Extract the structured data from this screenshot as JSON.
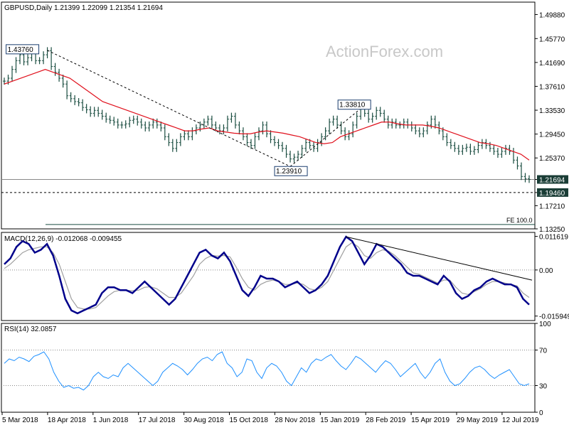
{
  "header": {
    "symbol": "GBPUSD,Daily",
    "ohlc": "1.21399 1.22099 1.21354 1.21694"
  },
  "watermark": "ActionForex.com",
  "colors": {
    "background": "#ffffff",
    "frame": "#000000",
    "price_bars": "#1a4d40",
    "moving_average": "#e0101c",
    "macd_line": "#00008b",
    "macd_signal": "#a0a0a0",
    "rsi_line": "#1e90ff",
    "current_price_tag": "#1a3d36",
    "support_tag": "#1a3d36",
    "guide_line": "#000000",
    "watermark": "#c8c8c8"
  },
  "chart_data": [
    {
      "type": "ohlc",
      "panel": "price",
      "ylim": [
        1.1325,
        1.52
      ],
      "yticks": [
        "1.49880",
        "1.45770",
        "1.41690",
        "1.37610",
        "1.33530",
        "1.29450",
        "1.25370",
        "1.21694",
        "1.19460",
        "1.17210",
        "1.13250"
      ],
      "ytick_values": [
        1.4988,
        1.4577,
        1.4169,
        1.3761,
        1.3353,
        1.2945,
        1.2537,
        1.21694,
        1.1946,
        1.1721,
        1.1325
      ],
      "xticks": [
        "5 Mar 2018",
        "18 Apr 2018",
        "1 Jun 2018",
        "17 Jul 2018",
        "30 Aug 2018",
        "15 Oct 2018",
        "28 Nov 2018",
        "15 Jan 2019",
        "28 Feb 2019",
        "15 Apr 2019",
        "29 May 2019",
        "12 Jul 2019"
      ],
      "close_series_approx": [
        1.385,
        1.39,
        1.405,
        1.42,
        1.43,
        1.418,
        1.425,
        1.435,
        1.42,
        1.42,
        1.43,
        1.437,
        1.41,
        1.4,
        1.39,
        1.38,
        1.36,
        1.355,
        1.35,
        1.348,
        1.34,
        1.336,
        1.33,
        1.335,
        1.33,
        1.325,
        1.32,
        1.318,
        1.315,
        1.31,
        1.31,
        1.312,
        1.318,
        1.32,
        1.315,
        1.31,
        1.305,
        1.31,
        1.315,
        1.31,
        1.305,
        1.29,
        1.28,
        1.27,
        1.28,
        1.29,
        1.295,
        1.29,
        1.3,
        1.305,
        1.31,
        1.315,
        1.32,
        1.31,
        1.305,
        1.3,
        1.305,
        1.32,
        1.325,
        1.31,
        1.3,
        1.29,
        1.28,
        1.275,
        1.29,
        1.3,
        1.31,
        1.295,
        1.285,
        1.28,
        1.275,
        1.27,
        1.26,
        1.252,
        1.255,
        1.26,
        1.27,
        1.28,
        1.275,
        1.27,
        1.28,
        1.29,
        1.3,
        1.315,
        1.32,
        1.31,
        1.3,
        1.29,
        1.295,
        1.31,
        1.325,
        1.338,
        1.33,
        1.32,
        1.325,
        1.335,
        1.33,
        1.32,
        1.31,
        1.315,
        1.31,
        1.31,
        1.315,
        1.31,
        1.305,
        1.3,
        1.295,
        1.3,
        1.31,
        1.32,
        1.31,
        1.3,
        1.29,
        1.28,
        1.275,
        1.27,
        1.265,
        1.27,
        1.272,
        1.265,
        1.268,
        1.275,
        1.28,
        1.275,
        1.27,
        1.265,
        1.26,
        1.265,
        1.27,
        1.265,
        1.25,
        1.24,
        1.222,
        1.218,
        1.217
      ],
      "ma_series_approx": [
        1.38,
        1.385,
        1.39,
        1.395,
        1.4,
        1.405,
        1.4,
        1.395,
        1.39,
        1.38,
        1.37,
        1.36,
        1.35,
        1.345,
        1.34,
        1.335,
        1.33,
        1.325,
        1.32,
        1.315,
        1.31,
        1.305,
        1.3,
        1.3,
        1.303,
        1.305,
        1.3,
        1.298,
        1.296,
        1.295,
        1.295,
        1.298,
        1.3,
        1.298,
        1.296,
        1.293,
        1.29,
        1.285,
        1.28,
        1.278,
        1.28,
        1.29,
        1.295,
        1.3,
        1.305,
        1.31,
        1.315,
        1.315,
        1.312,
        1.31,
        1.31,
        1.31,
        1.308,
        1.305,
        1.3,
        1.295,
        1.29,
        1.285,
        1.28,
        1.278,
        1.275,
        1.27,
        1.265,
        1.26,
        1.25
      ],
      "annotations": [
        {
          "label": "1.43760",
          "value": 1.4376
        },
        {
          "label": "1.33810",
          "value": 1.3381
        },
        {
          "label": "1.23910",
          "value": 1.2391
        },
        {
          "label": "FE 100.0",
          "value": 1.14
        }
      ],
      "current_price": 1.21694,
      "support_level": 1.1946,
      "trendlines": [
        {
          "from": [
            1.4376,
            "peak"
          ],
          "to": [
            1.2391,
            "trough"
          ],
          "style": "dashed"
        },
        {
          "from": [
            1.2391,
            "trough"
          ],
          "to": [
            1.3381,
            "peak"
          ],
          "style": "dashed"
        }
      ]
    },
    {
      "type": "line",
      "panel": "macd",
      "title": "MACD(12,26,9) -0.012068 -0.009455",
      "ylim": [
        -0.0175,
        0.013
      ],
      "yticks": [
        "0.011619",
        "0.00",
        "-0.015949"
      ],
      "ytick_values": [
        0.011619,
        0.0,
        -0.015949
      ],
      "series": [
        {
          "values": [
            0.002,
            0.004,
            0.008,
            0.01,
            0.009,
            0.006,
            0.007,
            0.009,
            0.005,
            -0.002,
            -0.01,
            -0.014,
            -0.015,
            -0.014,
            -0.013,
            -0.012,
            -0.008,
            -0.006,
            -0.006,
            -0.007,
            -0.007,
            -0.008,
            -0.006,
            -0.004,
            -0.006,
            -0.008,
            -0.01,
            -0.012,
            -0.01,
            -0.006,
            -0.002,
            0.002,
            0.006,
            0.007,
            0.005,
            0.004,
            0.006,
            0.003,
            -0.002,
            -0.007,
            -0.009,
            -0.006,
            -0.002,
            -0.003,
            -0.003,
            -0.004,
            -0.006,
            -0.005,
            -0.004,
            -0.006,
            -0.008,
            -0.007,
            -0.005,
            -0.002,
            0.003,
            0.008,
            0.0115,
            0.01,
            0.006,
            0.002,
            0.005,
            0.009,
            0.008,
            0.006,
            0.004,
            0.002,
            -0.001,
            -0.002,
            -0.002,
            -0.003,
            -0.004,
            -0.005,
            -0.002,
            -0.004,
            -0.008,
            -0.01,
            -0.009,
            -0.007,
            -0.006,
            -0.004,
            -0.003,
            -0.004,
            -0.005,
            -0.005,
            -0.006,
            -0.01,
            -0.012
          ]
        },
        {
          "values": [
            0.0005,
            0.002,
            0.004,
            0.006,
            0.007,
            0.0075,
            0.008,
            0.008,
            0.006,
            0.002,
            -0.004,
            -0.01,
            -0.013,
            -0.0135,
            -0.0135,
            -0.013,
            -0.011,
            -0.009,
            -0.0075,
            -0.007,
            -0.007,
            -0.0072,
            -0.007,
            -0.006,
            -0.0058,
            -0.0065,
            -0.008,
            -0.0095,
            -0.0095,
            -0.008,
            -0.005,
            -0.002,
            0.002,
            0.004,
            0.005,
            0.0048,
            0.005,
            0.0045,
            0.001,
            -0.003,
            -0.006,
            -0.007,
            -0.005,
            -0.004,
            -0.0035,
            -0.004,
            -0.005,
            -0.005,
            -0.0045,
            -0.005,
            -0.0065,
            -0.007,
            -0.006,
            -0.004,
            0.0,
            0.004,
            0.008,
            0.0095,
            0.008,
            0.005,
            0.004,
            0.006,
            0.007,
            0.0065,
            0.005,
            0.003,
            0.001,
            -0.001,
            -0.0015,
            -0.0025,
            -0.0035,
            -0.0045,
            -0.0035,
            -0.0035,
            -0.006,
            -0.008,
            -0.0085,
            -0.0075,
            -0.0065,
            -0.005,
            -0.004,
            -0.004,
            -0.0045,
            -0.005,
            -0.0055,
            -0.008,
            -0.0095
          ]
        }
      ]
    },
    {
      "type": "line",
      "panel": "rsi",
      "title": "RSI(14) 32.0857",
      "ylim": [
        0,
        100
      ],
      "yticks": [
        "100",
        "70",
        "30",
        "0"
      ],
      "ytick_values": [
        100,
        70,
        30,
        0
      ],
      "values": [
        55,
        60,
        58,
        62,
        60,
        57,
        63,
        65,
        68,
        60,
        45,
        35,
        28,
        30,
        27,
        28,
        25,
        30,
        40,
        45,
        40,
        38,
        42,
        40,
        50,
        55,
        50,
        45,
        40,
        35,
        30,
        35,
        45,
        50,
        55,
        52,
        48,
        42,
        48,
        55,
        60,
        62,
        58,
        65,
        68,
        55,
        50,
        40,
        45,
        60,
        58,
        45,
        38,
        50,
        55,
        52,
        45,
        35,
        30,
        40,
        50,
        45,
        55,
        60,
        58,
        62,
        65,
        58,
        52,
        48,
        55,
        63,
        60,
        55,
        50,
        45,
        52,
        58,
        55,
        48,
        40,
        45,
        50,
        55,
        45,
        38,
        45,
        55,
        60,
        45,
        35,
        30,
        32,
        38,
        45,
        50,
        52,
        48,
        42,
        38,
        42,
        45,
        48,
        40,
        32,
        30,
        32
      ]
    }
  ]
}
